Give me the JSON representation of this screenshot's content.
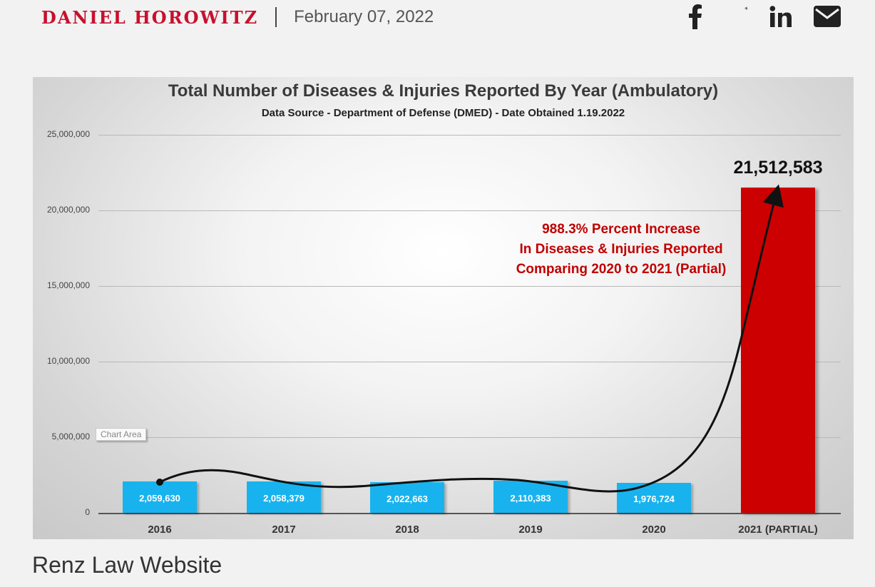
{
  "header": {
    "author": "DANIEL HOROWITZ",
    "date": "February 07, 2022",
    "social_icons": [
      "facebook-icon",
      "twitter-icon",
      "linkedin-icon",
      "email-icon"
    ]
  },
  "chart_data": {
    "type": "bar",
    "title": "Total Number of Diseases & Injuries Reported By Year (Ambulatory)",
    "subtitle": "Data Source - Department of Defense (DMED) - Date Obtained 1.19.2022",
    "categories": [
      "2016",
      "2017",
      "2018",
      "2019",
      "2020",
      "2021 (PARTIAL)"
    ],
    "values": [
      2059630,
      2058379,
      2022663,
      2110383,
      1976724,
      21512583
    ],
    "value_labels": [
      "2,059,630",
      "2,058,379",
      "2,022,663",
      "2,110,383",
      "1,976,724",
      "21,512,583"
    ],
    "y_ticks": [
      "0",
      "5,000,000",
      "10,000,000",
      "15,000,000",
      "20,000,000",
      "25,000,000"
    ],
    "ylim": [
      0,
      25000000
    ],
    "bar_colors": [
      "#18b3ee",
      "#18b3ee",
      "#18b3ee",
      "#18b3ee",
      "#18b3ee",
      "#cc0000"
    ],
    "annotation": [
      "988.3% Percent Increase",
      "In Diseases & Injuries Reported",
      "Comparing 2020 to 2021 (Partial)"
    ],
    "tooltip_chip": "Chart Area",
    "grid": true
  },
  "caption": "Renz Law Website"
}
